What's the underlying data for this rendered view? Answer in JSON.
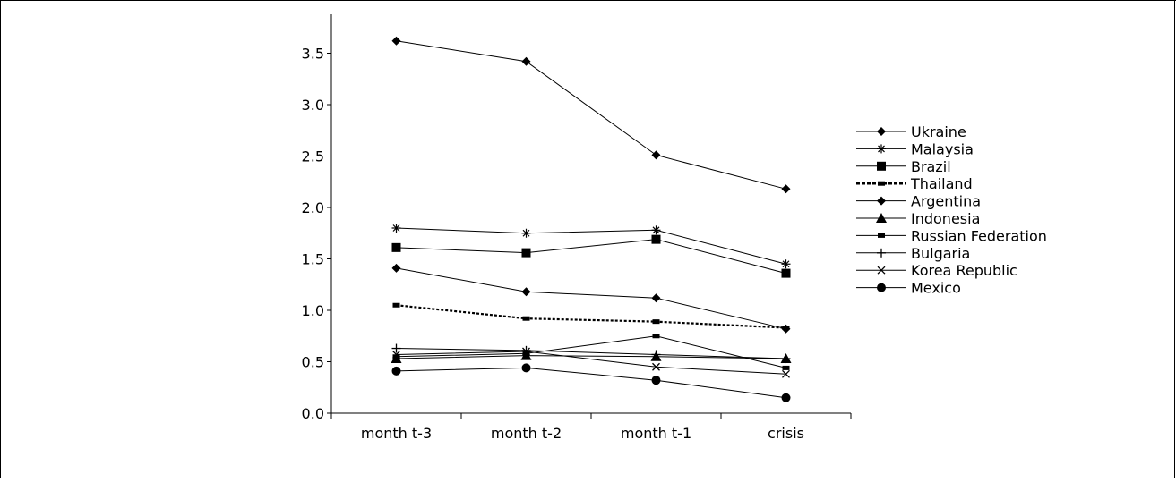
{
  "chart_data": {
    "type": "line",
    "title": "",
    "xlabel": "",
    "ylabel": "",
    "categories": [
      "month t-3",
      "month t-2",
      "month t-1",
      "crisis"
    ],
    "ylim": [
      0,
      3.5
    ],
    "yticks": [
      "0.0",
      "0.5",
      "1.0",
      "1.5",
      "2.0",
      "2.5",
      "3.0",
      "3.5"
    ],
    "grid": false,
    "legend_position": "right",
    "series": [
      {
        "name": "Ukraine",
        "marker": "diamond",
        "dash": "solid",
        "values": [
          3.62,
          3.42,
          2.51,
          2.18
        ]
      },
      {
        "name": "Malaysia",
        "marker": "asterisk",
        "dash": "solid",
        "values": [
          1.8,
          1.75,
          1.78,
          1.45
        ]
      },
      {
        "name": "Brazil",
        "marker": "square",
        "dash": "solid",
        "values": [
          1.61,
          1.56,
          1.69,
          1.36
        ]
      },
      {
        "name": "Thailand",
        "marker": "dash",
        "dash": "dotted",
        "values": [
          1.05,
          0.92,
          0.89,
          0.83
        ]
      },
      {
        "name": "Argentina",
        "marker": "diamond",
        "dash": "solid",
        "values": [
          1.41,
          1.18,
          1.12,
          0.82
        ]
      },
      {
        "name": "Indonesia",
        "marker": "triangle",
        "dash": "solid",
        "values": [
          0.53,
          0.56,
          0.55,
          0.53
        ]
      },
      {
        "name": "Russian Federation",
        "marker": "dash",
        "dash": "solid",
        "values": [
          0.55,
          0.58,
          0.75,
          0.44
        ]
      },
      {
        "name": "Bulgaria",
        "marker": "plus",
        "dash": "solid",
        "values": [
          0.63,
          0.61,
          0.57,
          0.53
        ]
      },
      {
        "name": "Korea Republic",
        "marker": "x",
        "dash": "solid",
        "values": [
          0.57,
          0.6,
          0.45,
          0.38
        ]
      },
      {
        "name": "Mexico",
        "marker": "circle",
        "dash": "solid",
        "values": [
          0.41,
          0.44,
          0.32,
          0.15
        ]
      }
    ]
  }
}
